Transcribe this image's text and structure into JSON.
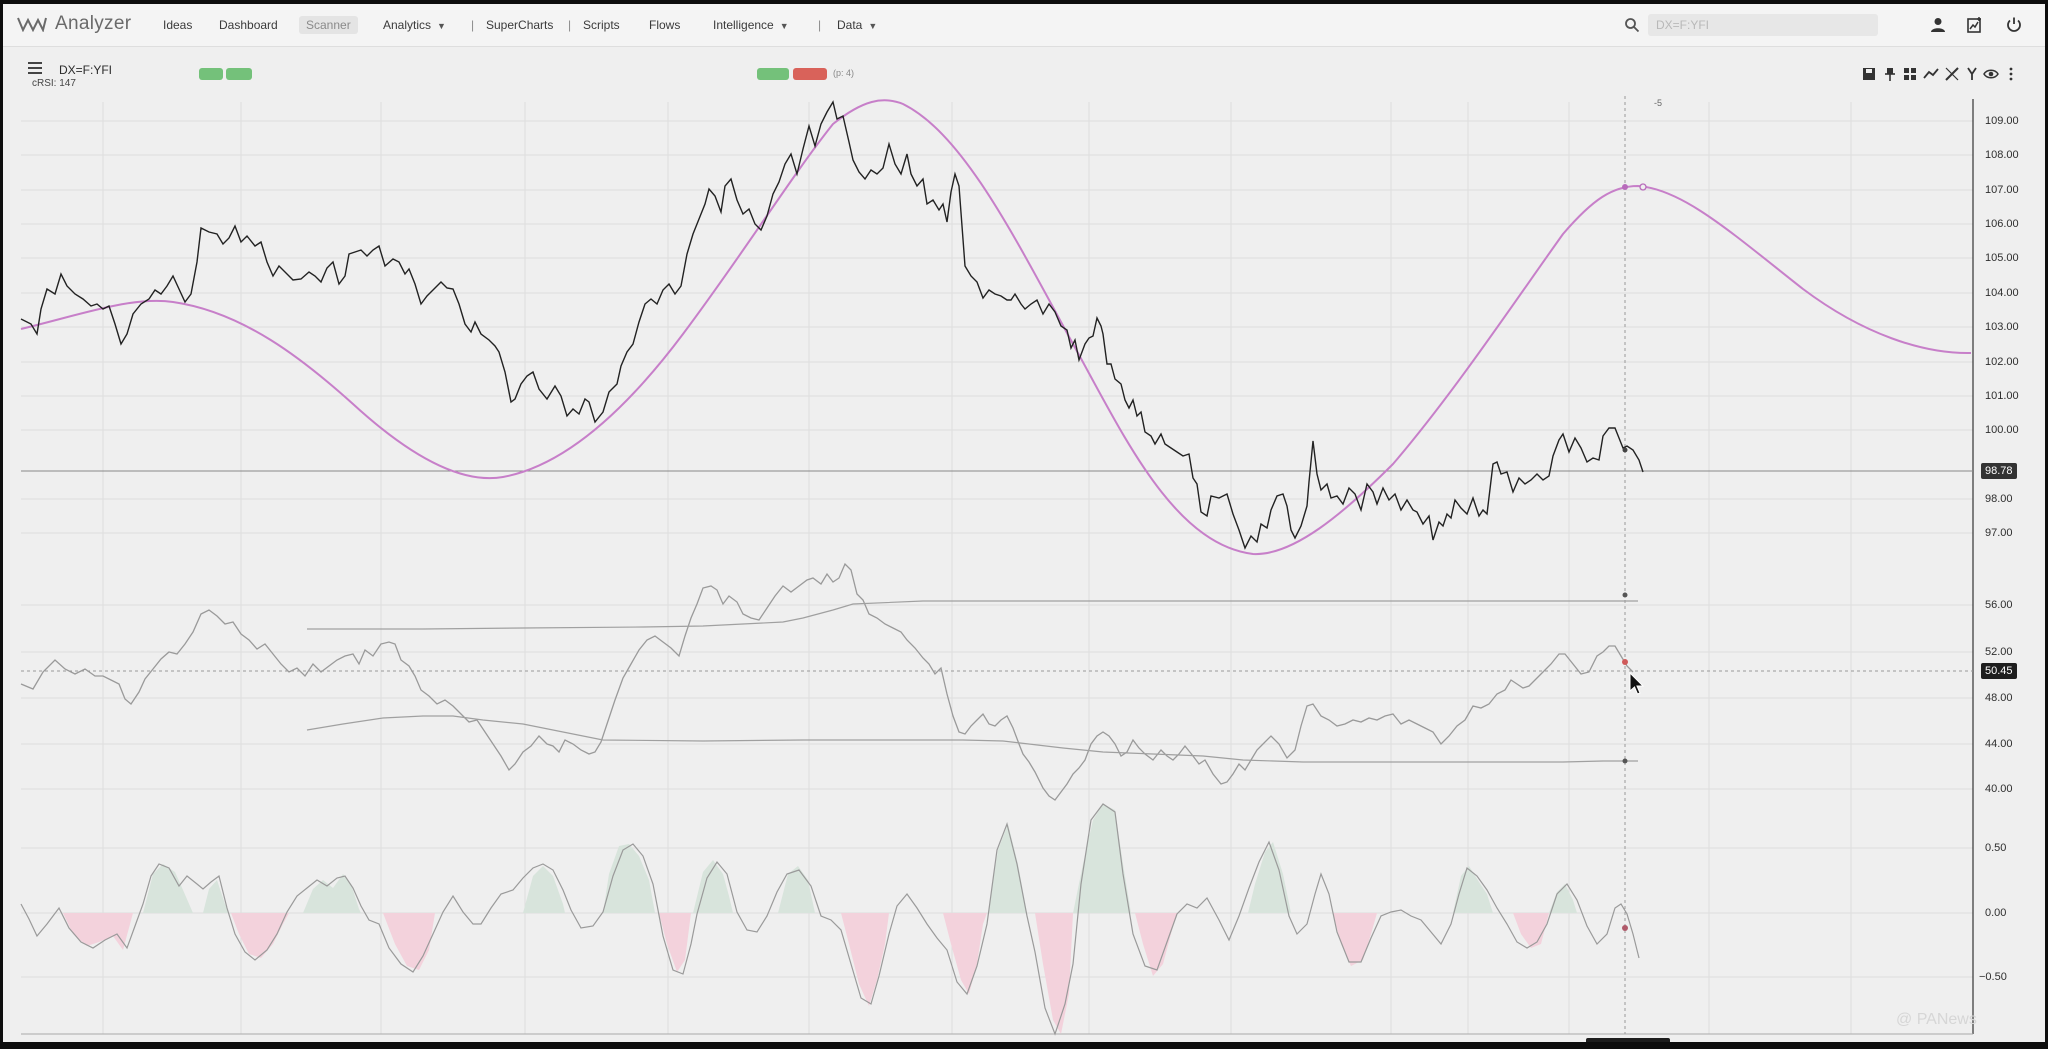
{
  "app": {
    "name": "Analyzer"
  },
  "nav": {
    "ideas": "Ideas",
    "dashboard": "Dashboard",
    "scanner": "Scanner",
    "analytics": "Analytics",
    "supercharts": "SuperCharts",
    "scripts": "Scripts",
    "flows": "Flows",
    "intelligence": "Intelligence",
    "data": "Data",
    "separator": "|"
  },
  "search": {
    "placeholder": "DX=F:YFI"
  },
  "chart": {
    "symbol": "DX=F:YFI",
    "indicator_label": "cRSI: 147",
    "pill_params": "(p: 4)",
    "cursor_offset_label": "-5"
  },
  "price_axis": {
    "ticks": [
      "109.00",
      "108.00",
      "107.00",
      "106.00",
      "105.00",
      "104.00",
      "103.00",
      "102.00",
      "101.00",
      "100.00",
      "98.00",
      "97.00"
    ],
    "current_price": "98.78"
  },
  "rsi_axis": {
    "ticks": [
      "56.00",
      "52.00",
      "48.00",
      "44.00",
      "40.00"
    ],
    "current_value": "50.45"
  },
  "osc_axis": {
    "ticks": [
      "0.50",
      "0.00",
      "−0.50"
    ]
  },
  "colors": {
    "cycle_line": "#c77fc9",
    "price_line": "#222222",
    "pill_green": "#74c17a",
    "pill_red": "#d9625a",
    "osc_positive_fill": "#d8e4dc",
    "osc_negative_fill": "#f3d2dc"
  },
  "watermark": "@ PANews"
}
